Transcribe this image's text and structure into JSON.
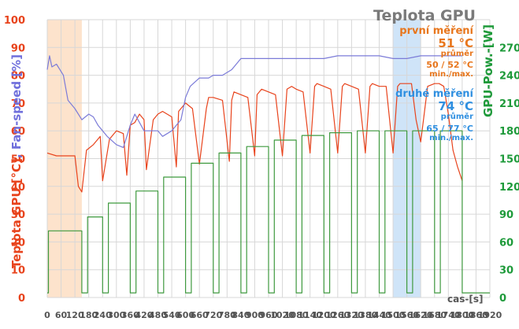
{
  "chart_data": {
    "type": "line",
    "title": "Teplota GPU",
    "xunit": "cas-[s]",
    "ylabel_left_temp": "Teplota GPU [°C]",
    "ylabel_left_sep": ", ",
    "ylabel_left_fan": "Fan-speed [%]",
    "ylabel_right": "GPU-Pow.-[W]",
    "x_ticks": [
      0,
      60,
      120,
      180,
      240,
      300,
      360,
      420,
      480,
      540,
      600,
      660,
      720,
      780,
      840,
      900,
      960,
      1020,
      1080,
      1140,
      1200,
      1260,
      1320,
      1380,
      1440,
      1500,
      1560,
      1620,
      1680,
      1740,
      1800,
      1860,
      1920
    ],
    "y_left_ticks": [
      0,
      10,
      20,
      30,
      40,
      50,
      60,
      70,
      80,
      90,
      100
    ],
    "y_right_ticks": [
      0,
      30,
      60,
      90,
      120,
      150,
      180,
      210,
      240,
      270
    ],
    "xlim": [
      0,
      1920
    ],
    "ylim_left": [
      0,
      100
    ],
    "ylim_right": [
      0,
      300
    ],
    "grid": true,
    "highlights": [
      {
        "x": [
          0,
          150
        ],
        "color": "#fde3cc"
      },
      {
        "x": [
          1500,
          1620
        ],
        "color": "#cfe4f8"
      }
    ],
    "annotations": {
      "first": {
        "heading": "první měření",
        "avg": "51 °C",
        "avg_label": "průměr",
        "minmax": "50 / 52 °C",
        "minmax_label": "min./max."
      },
      "second": {
        "heading": "druhé měření",
        "avg": "74 °C",
        "avg_label": "průměr",
        "minmax": "65 / 77 °C",
        "minmax_label": "min./max."
      }
    },
    "colors": {
      "temperature": "#e8431c",
      "fan": "#7b7bd8",
      "power": "#3f9a3f",
      "grid": "#d7d7d7"
    },
    "series": [
      {
        "name": "Teplota GPU [°C]",
        "axis": "left",
        "x": [
          0,
          40,
          60,
          90,
          120,
          135,
          150,
          170,
          200,
          230,
          240,
          270,
          300,
          330,
          345,
          360,
          380,
          400,
          420,
          430,
          460,
          480,
          500,
          540,
          560,
          570,
          600,
          630,
          660,
          690,
          700,
          720,
          760,
          790,
          800,
          810,
          840,
          870,
          900,
          910,
          930,
          960,
          990,
          1020,
          1040,
          1060,
          1080,
          1110,
          1140,
          1160,
          1170,
          1200,
          1230,
          1260,
          1280,
          1290,
          1320,
          1350,
          1380,
          1400,
          1410,
          1440,
          1470,
          1500,
          1520,
          1530,
          1560,
          1580,
          1600,
          1620,
          1650,
          1680,
          1700,
          1720,
          1740,
          1760,
          1780,
          1800
        ],
        "values": [
          52,
          51,
          51,
          51,
          51,
          40,
          38,
          53,
          55,
          58,
          42,
          57,
          60,
          59,
          44,
          62,
          63,
          66,
          64,
          46,
          64,
          66,
          67,
          65,
          47,
          67,
          70,
          68,
          48,
          68,
          72,
          72,
          71,
          49,
          71,
          74,
          73,
          72,
          51,
          73,
          75,
          74,
          73,
          51,
          75,
          76,
          75,
          74,
          52,
          76,
          77,
          76,
          75,
          52,
          76,
          77,
          76,
          75,
          52,
          76,
          77,
          76,
          76,
          52,
          76,
          77,
          77,
          77,
          64,
          56,
          76,
          77,
          77,
          76,
          66,
          53,
          47,
          42
        ]
      },
      {
        "name": "Fan-speed [%]",
        "axis": "left",
        "x": [
          0,
          10,
          20,
          40,
          70,
          90,
          120,
          150,
          180,
          200,
          220,
          260,
          300,
          330,
          345,
          360,
          380,
          400,
          420,
          480,
          500,
          540,
          560,
          580,
          600,
          620,
          660,
          700,
          720,
          760,
          800,
          840,
          870,
          900,
          960,
          1020,
          1080,
          1140,
          1200,
          1260,
          1320,
          1380,
          1440,
          1500,
          1560,
          1620,
          1680,
          1700,
          1740,
          1800
        ],
        "values": [
          82,
          87,
          83,
          84,
          80,
          71,
          68,
          64,
          66,
          65,
          62,
          58,
          55,
          54,
          58,
          62,
          66,
          63,
          60,
          60,
          58,
          60,
          62,
          64,
          72,
          76,
          79,
          79,
          80,
          80,
          82,
          86,
          86,
          86,
          86,
          86,
          86,
          86,
          86,
          87,
          87,
          87,
          87,
          86,
          86,
          87,
          87,
          87,
          87,
          87
        ]
      },
      {
        "name": "GPU-Pow.-[W]",
        "axis": "right",
        "x": [
          0,
          5,
          5,
          150,
          150,
          175,
          175,
          240,
          240,
          265,
          265,
          360,
          360,
          385,
          385,
          480,
          480,
          505,
          505,
          600,
          600,
          625,
          625,
          720,
          720,
          745,
          745,
          840,
          840,
          865,
          865,
          960,
          960,
          985,
          985,
          1080,
          1080,
          1105,
          1105,
          1200,
          1200,
          1225,
          1225,
          1320,
          1320,
          1345,
          1345,
          1440,
          1440,
          1465,
          1465,
          1560,
          1560,
          1585,
          1585,
          1680,
          1680,
          1705,
          1705,
          1800,
          1800,
          1920
        ],
        "values": [
          5,
          5,
          72,
          72,
          5,
          5,
          87,
          87,
          5,
          5,
          102,
          102,
          5,
          5,
          115,
          115,
          5,
          5,
          130,
          130,
          5,
          5,
          145,
          145,
          5,
          5,
          156,
          156,
          5,
          5,
          163,
          163,
          5,
          5,
          170,
          170,
          5,
          5,
          175,
          175,
          5,
          5,
          178,
          178,
          5,
          5,
          180,
          180,
          5,
          5,
          180,
          180,
          5,
          5,
          180,
          180,
          5,
          5,
          180,
          180,
          5,
          5
        ]
      }
    ]
  }
}
